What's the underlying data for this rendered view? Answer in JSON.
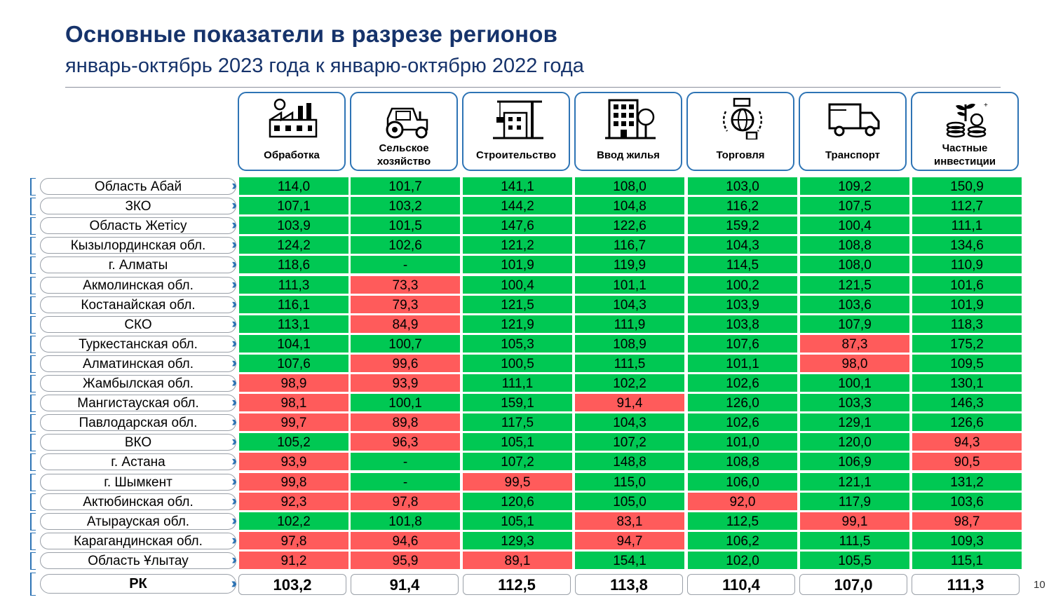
{
  "title": "Основные показатели в разрезе регионов",
  "subtitle": "январь-октябрь 2023 года к январю-октябрю 2022 года",
  "page_number": "10",
  "colors": {
    "positive": "#00c853",
    "negative": "#ff5b5b",
    "accent": "#2e74b5",
    "title": "#16336b"
  },
  "columns": [
    {
      "label": "Обработка",
      "icon": "factory-icon"
    },
    {
      "label": "Сельское\nхозяйство",
      "icon": "tractor-icon"
    },
    {
      "label": "Строительство",
      "icon": "crane-icon"
    },
    {
      "label": "Ввод жилья",
      "icon": "building-icon"
    },
    {
      "label": "Торговля",
      "icon": "globe-trade-icon"
    },
    {
      "label": "Транспорт",
      "icon": "truck-icon"
    },
    {
      "label": "Частные\nинвестиции",
      "icon": "coins-plant-icon"
    }
  ],
  "rows": [
    {
      "region": "Область Абай",
      "values": [
        "114,0",
        "101,7",
        "141,1",
        "108,0",
        "103,0",
        "109,2",
        "150,9"
      ],
      "status": [
        "g",
        "g",
        "g",
        "g",
        "g",
        "g",
        "g"
      ]
    },
    {
      "region": "ЗКО",
      "values": [
        "107,1",
        "103,2",
        "144,2",
        "104,8",
        "116,2",
        "107,5",
        "112,7"
      ],
      "status": [
        "g",
        "g",
        "g",
        "g",
        "g",
        "g",
        "g"
      ]
    },
    {
      "region": "Область Жетісу",
      "values": [
        "103,9",
        "101,5",
        "147,6",
        "122,6",
        "159,2",
        "100,4",
        "111,1"
      ],
      "status": [
        "g",
        "g",
        "g",
        "g",
        "g",
        "g",
        "g"
      ]
    },
    {
      "region": "Кызылординская обл.",
      "values": [
        "124,2",
        "102,6",
        "121,2",
        "116,7",
        "104,3",
        "108,8",
        "134,6"
      ],
      "status": [
        "g",
        "g",
        "g",
        "g",
        "g",
        "g",
        "g"
      ]
    },
    {
      "region": "г. Алматы",
      "values": [
        "118,6",
        "-",
        "101,9",
        "119,9",
        "114,5",
        "108,0",
        "110,9"
      ],
      "status": [
        "g",
        "g",
        "g",
        "g",
        "g",
        "g",
        "g"
      ]
    },
    {
      "region": "Акмолинская обл.",
      "values": [
        "111,3",
        "73,3",
        "100,4",
        "101,1",
        "100,2",
        "121,5",
        "101,6"
      ],
      "status": [
        "g",
        "r",
        "g",
        "g",
        "g",
        "g",
        "g"
      ]
    },
    {
      "region": "Костанайская обл.",
      "values": [
        "116,1",
        "79,3",
        "121,5",
        "104,3",
        "103,9",
        "103,6",
        "101,9"
      ],
      "status": [
        "g",
        "r",
        "g",
        "g",
        "g",
        "g",
        "g"
      ]
    },
    {
      "region": "СКО",
      "values": [
        "113,1",
        "84,9",
        "121,9",
        "111,9",
        "103,8",
        "107,9",
        "118,3"
      ],
      "status": [
        "g",
        "r",
        "g",
        "g",
        "g",
        "g",
        "g"
      ]
    },
    {
      "region": "Туркестанская обл.",
      "values": [
        "104,1",
        "100,7",
        "105,3",
        "108,9",
        "107,6",
        "87,3",
        "175,2"
      ],
      "status": [
        "g",
        "g",
        "g",
        "g",
        "g",
        "r",
        "g"
      ]
    },
    {
      "region": "Алматинская обл.",
      "values": [
        "107,6",
        "99,6",
        "100,5",
        "111,5",
        "101,1",
        "98,0",
        "109,5"
      ],
      "status": [
        "g",
        "r",
        "g",
        "g",
        "g",
        "r",
        "g"
      ]
    },
    {
      "region": "Жамбылская обл.",
      "values": [
        "98,9",
        "93,9",
        "111,1",
        "102,2",
        "102,6",
        "100,1",
        "130,1"
      ],
      "status": [
        "r",
        "r",
        "g",
        "g",
        "g",
        "g",
        "g"
      ]
    },
    {
      "region": "Мангистауская обл.",
      "values": [
        "98,1",
        "100,1",
        "159,1",
        "91,4",
        "126,0",
        "103,3",
        "146,3"
      ],
      "status": [
        "r",
        "g",
        "g",
        "r",
        "g",
        "g",
        "g"
      ]
    },
    {
      "region": "Павлодарская обл.",
      "values": [
        "99,7",
        "89,8",
        "117,5",
        "104,3",
        "102,6",
        "129,1",
        "126,6"
      ],
      "status": [
        "r",
        "r",
        "g",
        "g",
        "g",
        "g",
        "g"
      ]
    },
    {
      "region": "ВКО",
      "values": [
        "105,2",
        "96,3",
        "105,1",
        "107,2",
        "101,0",
        "120,0",
        "94,3"
      ],
      "status": [
        "g",
        "r",
        "g",
        "g",
        "g",
        "g",
        "r"
      ]
    },
    {
      "region": "г. Астана",
      "values": [
        "93,9",
        "-",
        "107,2",
        "148,8",
        "108,8",
        "106,9",
        "90,5"
      ],
      "status": [
        "r",
        "g",
        "g",
        "g",
        "g",
        "g",
        "r"
      ]
    },
    {
      "region": "г. Шымкент",
      "values": [
        "99,8",
        "-",
        "99,5",
        "115,0",
        "106,0",
        "121,1",
        "131,2"
      ],
      "status": [
        "r",
        "g",
        "r",
        "g",
        "g",
        "g",
        "g"
      ]
    },
    {
      "region": "Актюбинская обл.",
      "values": [
        "92,3",
        "97,8",
        "120,6",
        "105,0",
        "92,0",
        "117,9",
        "103,6"
      ],
      "status": [
        "r",
        "r",
        "g",
        "g",
        "r",
        "g",
        "g"
      ]
    },
    {
      "region": "Атырауская обл.",
      "values": [
        "102,2",
        "101,8",
        "105,1",
        "83,1",
        "112,5",
        "99,1",
        "98,7"
      ],
      "status": [
        "g",
        "g",
        "g",
        "r",
        "g",
        "r",
        "r"
      ]
    },
    {
      "region": "Карагандинская обл.",
      "values": [
        "97,8",
        "94,6",
        "129,3",
        "94,7",
        "106,2",
        "111,5",
        "109,3"
      ],
      "status": [
        "r",
        "r",
        "g",
        "r",
        "g",
        "g",
        "g"
      ]
    },
    {
      "region": "Область Ұлытау",
      "values": [
        "91,2",
        "95,9",
        "89,1",
        "154,1",
        "102,0",
        "105,5",
        "115,1"
      ],
      "status": [
        "r",
        "r",
        "r",
        "g",
        "g",
        "g",
        "g"
      ]
    }
  ],
  "total": {
    "region": "РК",
    "values": [
      "103,2",
      "91,4",
      "112,5",
      "113,8",
      "110,4",
      "107,0",
      "111,3"
    ]
  }
}
